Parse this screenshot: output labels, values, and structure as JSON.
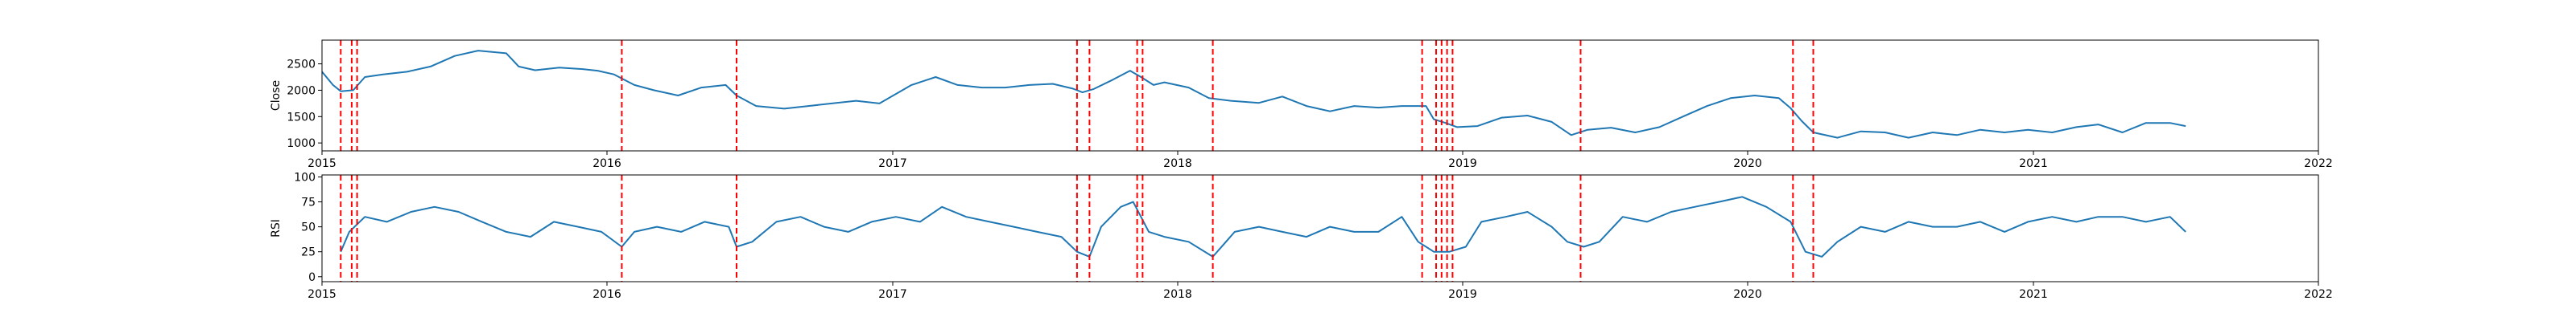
{
  "chart_data": [
    {
      "type": "line",
      "ylabel": "Close",
      "xlim": [
        "2015-01-01",
        "2022-01-01"
      ],
      "ylim": [
        850,
        2950
      ],
      "x_ticks": [
        "2015-01-01",
        "2016-01-01",
        "2017-01-01",
        "2018-01-01",
        "2019-01-01",
        "2020-01-01",
        "2021-01-01",
        "2022-01-01"
      ],
      "x_tick_labels": [
        "2015",
        "2016",
        "2017",
        "2018",
        "2019",
        "2020",
        "2021",
        "2022"
      ],
      "y_ticks": [
        1000,
        1500,
        2000,
        2500
      ],
      "y_tick_labels": [
        "1000",
        "1500",
        "2000",
        "2500"
      ],
      "grid": false,
      "line_color": "#1f77b4",
      "signal_line_color": "#ff0000",
      "series": [
        {
          "x": [
            "2015-01-01",
            "2015-01-15",
            "2015-01-25",
            "2015-02-10",
            "2015-02-25",
            "2015-03-20",
            "2015-04-20",
            "2015-05-20",
            "2015-06-20",
            "2015-07-20",
            "2015-08-25",
            "2015-09-10",
            "2015-10-01",
            "2015-11-01",
            "2015-12-01",
            "2015-12-20",
            "2016-01-10",
            "2016-02-05",
            "2016-03-01",
            "2016-04-01",
            "2016-05-01",
            "2016-06-01",
            "2016-06-15",
            "2016-07-10",
            "2016-08-15",
            "2016-09-15",
            "2016-10-15",
            "2016-11-15",
            "2016-12-15",
            "2017-01-25",
            "2017-02-25",
            "2017-03-25",
            "2017-04-25",
            "2017-05-25",
            "2017-06-25",
            "2017-07-25",
            "2017-08-20",
            "2017-09-01",
            "2017-09-15",
            "2017-10-10",
            "2017-11-01",
            "2017-11-15",
            "2017-12-01",
            "2017-12-15",
            "2018-01-15",
            "2018-02-10",
            "2018-03-10",
            "2018-04-15",
            "2018-05-15",
            "2018-06-15",
            "2018-07-15",
            "2018-08-15",
            "2018-09-15",
            "2018-10-15",
            "2018-11-15",
            "2018-11-25",
            "2018-12-10",
            "2018-12-25",
            "2019-01-20",
            "2019-02-20",
            "2019-03-25",
            "2019-04-25",
            "2019-05-20",
            "2019-06-10",
            "2019-07-10",
            "2019-08-10",
            "2019-09-10",
            "2019-10-10",
            "2019-11-10",
            "2019-12-10",
            "2020-01-10",
            "2020-02-10",
            "2020-02-25",
            "2020-03-10",
            "2020-03-25",
            "2020-04-25",
            "2020-05-25",
            "2020-06-25",
            "2020-07-25",
            "2020-08-25",
            "2020-09-25",
            "2020-10-25",
            "2020-11-25",
            "2020-12-25",
            "2021-01-25",
            "2021-02-25",
            "2021-03-25",
            "2021-04-25",
            "2021-05-25",
            "2021-06-25",
            "2021-07-15"
          ],
          "y": [
            2350,
            2100,
            1980,
            2000,
            2250,
            2300,
            2350,
            2450,
            2650,
            2750,
            2700,
            2450,
            2380,
            2430,
            2400,
            2370,
            2300,
            2100,
            2000,
            1900,
            2050,
            2100,
            1900,
            1700,
            1650,
            1700,
            1750,
            1800,
            1750,
            2100,
            2250,
            2100,
            2050,
            2050,
            2100,
            2120,
            2030,
            1960,
            2020,
            2200,
            2370,
            2250,
            2100,
            2150,
            2050,
            1850,
            1800,
            1760,
            1880,
            1700,
            1600,
            1700,
            1670,
            1700,
            1700,
            1450,
            1380,
            1300,
            1320,
            1480,
            1520,
            1400,
            1150,
            1250,
            1290,
            1200,
            1300,
            1500,
            1700,
            1850,
            1900,
            1850,
            1660,
            1420,
            1200,
            1100,
            1220,
            1200,
            1100,
            1200,
            1150,
            1250,
            1200,
            1250,
            1200,
            1300,
            1350,
            1200,
            1380,
            1380,
            1320
          ]
        }
      ]
    },
    {
      "type": "line",
      "ylabel": "RSI",
      "xlim": [
        "2015-01-01",
        "2022-01-01"
      ],
      "ylim": [
        -5,
        102
      ],
      "x_ticks": [
        "2015-01-01",
        "2016-01-01",
        "2017-01-01",
        "2018-01-01",
        "2019-01-01",
        "2020-01-01",
        "2021-01-01",
        "2022-01-01"
      ],
      "x_tick_labels": [
        "2015",
        "2016",
        "2017",
        "2018",
        "2019",
        "2020",
        "2021",
        "2022"
      ],
      "y_ticks": [
        0,
        25,
        50,
        75,
        100
      ],
      "y_tick_labels": [
        "0",
        "25",
        "50",
        "75",
        "100"
      ],
      "grid": false,
      "line_color": "#1f77b4",
      "signal_line_color": "#ff0000",
      "series": [
        {
          "x": [
            "2015-01-25",
            "2015-02-05",
            "2015-02-25",
            "2015-03-25",
            "2015-04-25",
            "2015-05-25",
            "2015-06-25",
            "2015-07-25",
            "2015-08-25",
            "2015-09-25",
            "2015-10-25",
            "2015-11-25",
            "2015-12-25",
            "2016-01-20",
            "2016-02-05",
            "2016-03-05",
            "2016-04-05",
            "2016-05-05",
            "2016-06-05",
            "2016-06-15",
            "2016-07-05",
            "2016-08-05",
            "2016-09-05",
            "2016-10-05",
            "2016-11-05",
            "2016-12-05",
            "2017-01-05",
            "2017-02-05",
            "2017-03-05",
            "2017-04-05",
            "2017-05-05",
            "2017-06-05",
            "2017-07-05",
            "2017-08-05",
            "2017-08-25",
            "2017-09-10",
            "2017-09-25",
            "2017-10-20",
            "2017-11-05",
            "2017-11-25",
            "2017-12-15",
            "2018-01-15",
            "2018-02-15",
            "2018-03-15",
            "2018-04-15",
            "2018-05-15",
            "2018-06-15",
            "2018-07-15",
            "2018-08-15",
            "2018-09-15",
            "2018-10-15",
            "2018-11-05",
            "2018-11-25",
            "2018-12-15",
            "2019-01-05",
            "2019-01-25",
            "2019-02-25",
            "2019-03-25",
            "2019-04-25",
            "2019-05-15",
            "2019-06-05",
            "2019-06-25",
            "2019-07-25",
            "2019-08-25",
            "2019-09-25",
            "2019-10-25",
            "2019-11-25",
            "2019-12-25",
            "2020-01-25",
            "2020-02-25",
            "2020-03-15",
            "2020-04-05",
            "2020-04-25",
            "2020-05-25",
            "2020-06-25",
            "2020-07-25",
            "2020-08-25",
            "2020-09-25",
            "2020-10-25",
            "2020-11-25",
            "2020-12-25",
            "2021-01-25",
            "2021-02-25",
            "2021-03-25",
            "2021-04-25",
            "2021-05-25",
            "2021-06-25",
            "2021-07-15"
          ],
          "y": [
            25,
            45,
            60,
            55,
            65,
            70,
            65,
            55,
            45,
            40,
            55,
            50,
            45,
            30,
            45,
            50,
            45,
            55,
            50,
            30,
            35,
            55,
            60,
            50,
            45,
            55,
            60,
            55,
            70,
            60,
            55,
            50,
            45,
            40,
            25,
            20,
            50,
            70,
            75,
            45,
            40,
            35,
            20,
            45,
            50,
            45,
            40,
            50,
            45,
            45,
            60,
            35,
            25,
            25,
            30,
            55,
            60,
            65,
            50,
            35,
            30,
            35,
            60,
            55,
            65,
            70,
            75,
            80,
            70,
            55,
            25,
            20,
            35,
            50,
            45,
            55,
            50,
            50,
            55,
            45,
            55,
            60,
            55,
            60,
            60,
            55,
            60,
            45
          ]
        }
      ]
    }
  ],
  "signal_dates": [
    "2015-01-25",
    "2015-02-08",
    "2015-02-15",
    "2016-01-20",
    "2016-06-15",
    "2017-08-25",
    "2017-09-10",
    "2017-11-10",
    "2017-11-17",
    "2018-02-15",
    "2018-11-10",
    "2018-11-28",
    "2018-12-05",
    "2018-12-12",
    "2018-12-19",
    "2019-06-01",
    "2020-02-28",
    "2020-03-25"
  ]
}
